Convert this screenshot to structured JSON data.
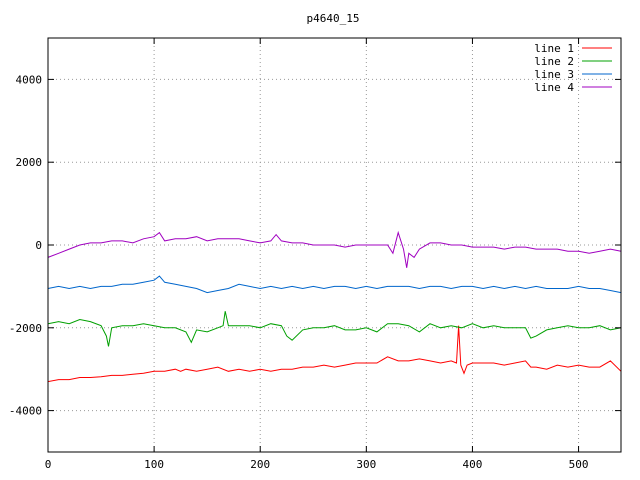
{
  "chart_data": {
    "type": "line",
    "title": "p4640_15",
    "xlabel": "",
    "ylabel": "",
    "xlim": [
      0,
      540
    ],
    "ylim": [
      -5000,
      5000
    ],
    "xticks": [
      0,
      100,
      200,
      300,
      400,
      500
    ],
    "yticks": [
      -4000,
      -2000,
      0,
      2000,
      4000
    ],
    "grid": true,
    "legend_position": "top-right",
    "series": [
      {
        "name": "line 1",
        "color": "#ff0000",
        "x": [
          0,
          10,
          20,
          30,
          40,
          50,
          60,
          70,
          80,
          90,
          100,
          110,
          120,
          125,
          130,
          140,
          150,
          160,
          170,
          180,
          190,
          200,
          210,
          220,
          230,
          240,
          250,
          260,
          270,
          280,
          290,
          300,
          310,
          320,
          330,
          340,
          350,
          360,
          370,
          380,
          385,
          387,
          389,
          392,
          395,
          400,
          410,
          420,
          430,
          440,
          450,
          455,
          460,
          470,
          480,
          490,
          500,
          510,
          520,
          530,
          540
        ],
        "y": [
          -3300,
          -3250,
          -3250,
          -3200,
          -3200,
          -3180,
          -3150,
          -3150,
          -3120,
          -3100,
          -3050,
          -3050,
          -3000,
          -3050,
          -3000,
          -3050,
          -3000,
          -2950,
          -3050,
          -3000,
          -3050,
          -3000,
          -3050,
          -3000,
          -3000,
          -2950,
          -2950,
          -2900,
          -2950,
          -2900,
          -2850,
          -2850,
          -2850,
          -2700,
          -2800,
          -2800,
          -2750,
          -2800,
          -2850,
          -2800,
          -2850,
          -1950,
          -2900,
          -3100,
          -2900,
          -2850,
          -2850,
          -2850,
          -2900,
          -2850,
          -2800,
          -2950,
          -2950,
          -3000,
          -2900,
          -2950,
          -2900,
          -2950,
          -2950,
          -2800,
          -3050
        ]
      },
      {
        "name": "line 2",
        "color": "#00a000",
        "x": [
          0,
          10,
          20,
          30,
          40,
          50,
          55,
          57,
          60,
          70,
          80,
          90,
          100,
          110,
          120,
          130,
          135,
          140,
          150,
          160,
          165,
          167,
          170,
          180,
          190,
          200,
          210,
          220,
          225,
          230,
          240,
          250,
          260,
          270,
          280,
          290,
          300,
          310,
          320,
          330,
          340,
          350,
          360,
          370,
          380,
          390,
          400,
          410,
          420,
          430,
          440,
          450,
          455,
          460,
          470,
          480,
          490,
          500,
          510,
          520,
          530,
          540
        ],
        "y": [
          -1900,
          -1850,
          -1900,
          -1800,
          -1850,
          -1950,
          -2200,
          -2450,
          -2000,
          -1950,
          -1950,
          -1900,
          -1950,
          -2000,
          -2000,
          -2100,
          -2350,
          -2050,
          -2100,
          -2000,
          -1950,
          -1600,
          -1950,
          -1950,
          -1950,
          -2000,
          -1900,
          -1950,
          -2200,
          -2300,
          -2050,
          -2000,
          -2000,
          -1950,
          -2050,
          -2050,
          -2000,
          -2100,
          -1900,
          -1900,
          -1950,
          -2100,
          -1900,
          -2000,
          -1950,
          -2000,
          -1900,
          -2000,
          -1950,
          -2000,
          -2000,
          -2000,
          -2250,
          -2200,
          -2050,
          -2000,
          -1950,
          -2000,
          -2000,
          -1950,
          -2050,
          -2000
        ]
      },
      {
        "name": "line 3",
        "color": "#0066cc",
        "x": [
          0,
          10,
          20,
          30,
          40,
          50,
          60,
          70,
          80,
          90,
          100,
          105,
          110,
          120,
          130,
          140,
          150,
          160,
          170,
          180,
          190,
          200,
          210,
          220,
          230,
          240,
          250,
          260,
          270,
          280,
          290,
          300,
          310,
          320,
          330,
          340,
          350,
          360,
          370,
          380,
          390,
          400,
          410,
          420,
          430,
          440,
          450,
          460,
          470,
          480,
          490,
          500,
          510,
          520,
          530,
          540
        ],
        "y": [
          -1050,
          -1000,
          -1050,
          -1000,
          -1050,
          -1000,
          -1000,
          -950,
          -950,
          -900,
          -850,
          -750,
          -900,
          -950,
          -1000,
          -1050,
          -1150,
          -1100,
          -1050,
          -950,
          -1000,
          -1050,
          -1000,
          -1050,
          -1000,
          -1050,
          -1000,
          -1050,
          -1000,
          -1000,
          -1050,
          -1000,
          -1050,
          -1000,
          -1000,
          -1000,
          -1050,
          -1000,
          -1000,
          -1050,
          -1000,
          -1000,
          -1050,
          -1000,
          -1050,
          -1000,
          -1050,
          -1000,
          -1050,
          -1050,
          -1050,
          -1000,
          -1050,
          -1050,
          -1100,
          -1150
        ]
      },
      {
        "name": "line 4",
        "color": "#a000c0",
        "x": [
          0,
          10,
          20,
          30,
          40,
          50,
          60,
          70,
          80,
          90,
          100,
          105,
          110,
          120,
          130,
          140,
          150,
          160,
          170,
          180,
          190,
          200,
          210,
          215,
          220,
          230,
          240,
          250,
          260,
          270,
          280,
          290,
          300,
          310,
          320,
          325,
          330,
          335,
          338,
          340,
          345,
          350,
          360,
          370,
          380,
          390,
          400,
          410,
          420,
          430,
          440,
          450,
          460,
          470,
          480,
          490,
          500,
          510,
          520,
          530,
          540
        ],
        "y": [
          -300,
          -200,
          -100,
          0,
          50,
          50,
          100,
          100,
          50,
          150,
          200,
          300,
          100,
          150,
          150,
          200,
          100,
          150,
          150,
          150,
          100,
          50,
          100,
          250,
          100,
          50,
          50,
          0,
          0,
          0,
          -50,
          0,
          0,
          0,
          0,
          -200,
          300,
          -100,
          -550,
          -200,
          -300,
          -100,
          50,
          50,
          0,
          0,
          -50,
          -50,
          -50,
          -100,
          -50,
          -50,
          -100,
          -100,
          -100,
          -150,
          -150,
          -200,
          -150,
          -100,
          -150
        ]
      }
    ]
  }
}
